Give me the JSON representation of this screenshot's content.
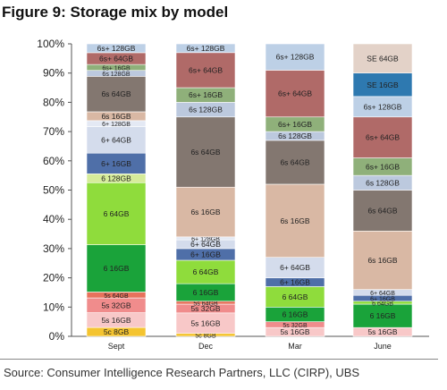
{
  "title": "Figure 9: Storage mix by model",
  "source": "Source:  Consumer Intelligence Research Partners, LLC (CIRP), UBS",
  "chart_data": {
    "type": "bar",
    "stacked": true,
    "y_unit": "%",
    "ylim": [
      0,
      100
    ],
    "yticks": [
      "0%",
      "10%",
      "20%",
      "30%",
      "40%",
      "50%",
      "60%",
      "70%",
      "80%",
      "90%",
      "100%"
    ],
    "categories": [
      "Sept",
      "Dec",
      "Mar",
      "June"
    ],
    "grid": false,
    "bars": [
      {
        "category": "Sept",
        "segments": [
          {
            "label": "5c 8GB",
            "value": 3,
            "color": "#f4c430"
          },
          {
            "label": "5s 16GB",
            "value": 5,
            "color": "#f8c8c8"
          },
          {
            "label": "5s 32GB",
            "value": 5,
            "color": "#f08c8c"
          },
          {
            "label": "5s 64GB",
            "value": 2,
            "color": "#e8725c"
          },
          {
            "label": "6 16GB",
            "value": 16,
            "color": "#1aa33a"
          },
          {
            "label": "6 64GB",
            "value": 21,
            "color": "#8fdc3c"
          },
          {
            "label": "6 128GB",
            "value": 3,
            "color": "#d6ec9a"
          },
          {
            "label": "6+ 16GB",
            "value": 7,
            "color": "#4f6fa8"
          },
          {
            "label": "6+ 64GB",
            "value": 9,
            "color": "#d4dcec"
          },
          {
            "label": "6+ 128GB",
            "value": 2,
            "color": "#e4e9f4"
          },
          {
            "label": "6s 16GB",
            "value": 3,
            "color": "#d9b8a4"
          },
          {
            "label": "6s 64GB",
            "value": 12,
            "color": "#837770"
          },
          {
            "label": "6s 128GB",
            "value": 2,
            "color": "#bcc9de"
          },
          {
            "label": "6s+ 16GB",
            "value": 2,
            "color": "#8fb07a"
          },
          {
            "label": "6s+ 64GB",
            "value": 4,
            "color": "#b06a68"
          },
          {
            "label": "6s+ 128GB",
            "value": 3,
            "color": "#bdd0e6"
          }
        ]
      },
      {
        "category": "Dec",
        "segments": [
          {
            "label": "5c 8GB",
            "value": 1,
            "color": "#f4c430"
          },
          {
            "label": "5s 16GB",
            "value": 7,
            "color": "#f8c8c8"
          },
          {
            "label": "5s 32GB",
            "value": 3,
            "color": "#f08c8c"
          },
          {
            "label": "5s 64GB",
            "value": 1,
            "color": "#e8725c"
          },
          {
            "label": "6 16GB",
            "value": 6,
            "color": "#1aa33a"
          },
          {
            "label": "6 64GB",
            "value": 8,
            "color": "#8fdc3c"
          },
          {
            "label": "6+ 16GB",
            "value": 4,
            "color": "#4f6fa8"
          },
          {
            "label": "6+ 64GB",
            "value": 3,
            "color": "#d4dcec"
          },
          {
            "label": "6+ 128GB",
            "value": 1,
            "color": "#e4e9f4"
          },
          {
            "label": "6s 16GB",
            "value": 17,
            "color": "#d9b8a4"
          },
          {
            "label": "6s 64GB",
            "value": 24,
            "color": "#837770"
          },
          {
            "label": "6s 128GB",
            "value": 5,
            "color": "#bcc9de"
          },
          {
            "label": "6s+ 16GB",
            "value": 5,
            "color": "#8fb07a"
          },
          {
            "label": "6s+ 64GB",
            "value": 12,
            "color": "#b06a68"
          },
          {
            "label": "6s+ 128GB",
            "value": 3,
            "color": "#bdd0e6"
          }
        ]
      },
      {
        "category": "Mar",
        "segments": [
          {
            "label": "5s 16GB",
            "value": 3,
            "color": "#f8c8c8"
          },
          {
            "label": "5s 32GB",
            "value": 2,
            "color": "#f08c8c"
          },
          {
            "label": "6 16GB",
            "value": 5,
            "color": "#1aa33a"
          },
          {
            "label": "6 64GB",
            "value": 7,
            "color": "#8fdc3c"
          },
          {
            "label": "6+ 16GB",
            "value": 3,
            "color": "#4f6fa8"
          },
          {
            "label": "6+ 64GB",
            "value": 7,
            "color": "#d4dcec"
          },
          {
            "label": "6s 16GB",
            "value": 25,
            "color": "#d9b8a4"
          },
          {
            "label": "6s 64GB",
            "value": 15,
            "color": "#837770"
          },
          {
            "label": "6s 128GB",
            "value": 3,
            "color": "#bcc9de"
          },
          {
            "label": "6s+ 16GB",
            "value": 5,
            "color": "#8fb07a"
          },
          {
            "label": "6s+ 64GB",
            "value": 16,
            "color": "#b06a68"
          },
          {
            "label": "6s+ 128GB",
            "value": 9,
            "color": "#bdd0e6"
          }
        ]
      },
      {
        "category": "June",
        "segments": [
          {
            "label": "5s 16GB",
            "value": 3,
            "color": "#f8c8c8"
          },
          {
            "label": "6 16GB",
            "value": 8,
            "color": "#1aa33a"
          },
          {
            "label": "6 64GB",
            "value": 1,
            "color": "#8fdc3c"
          },
          {
            "label": "6+ 16GB",
            "value": 2,
            "color": "#4f6fa8"
          },
          {
            "label": "6+ 64GB",
            "value": 2,
            "color": "#d4dcec"
          },
          {
            "label": "6s 16GB",
            "value": 20,
            "color": "#d9b8a4"
          },
          {
            "label": "6s 64GB",
            "value": 14,
            "color": "#837770"
          },
          {
            "label": "6s 128GB",
            "value": 5,
            "color": "#bcc9de"
          },
          {
            "label": "6s+ 16GB",
            "value": 6,
            "color": "#8fb07a"
          },
          {
            "label": "6s+ 64GB",
            "value": 14,
            "color": "#b06a68"
          },
          {
            "label": "6s+ 128GB",
            "value": 7,
            "color": "#bdd0e6"
          },
          {
            "label": "SE 16GB",
            "value": 8,
            "color": "#2e79b0"
          },
          {
            "label": "SE 64GB",
            "value": 10,
            "color": "#e3d2c8"
          }
        ]
      }
    ]
  }
}
